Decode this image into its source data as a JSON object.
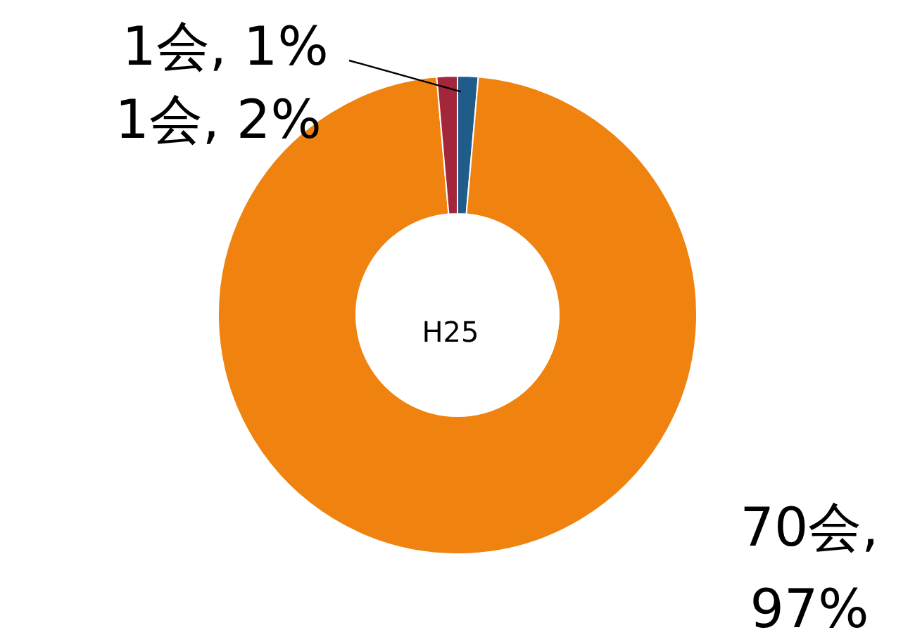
{
  "chart_data": {
    "type": "donut",
    "categories": [
      null,
      null,
      null
    ],
    "values": [
      1,
      70,
      1
    ],
    "colors": [
      "#1f5c8a",
      "#f0820f",
      "#a3263a"
    ],
    "value_labels": [
      "1会, 1%",
      "70会,\n97%",
      "1会, 2%"
    ],
    "annotations": [
      "H25"
    ]
  }
}
